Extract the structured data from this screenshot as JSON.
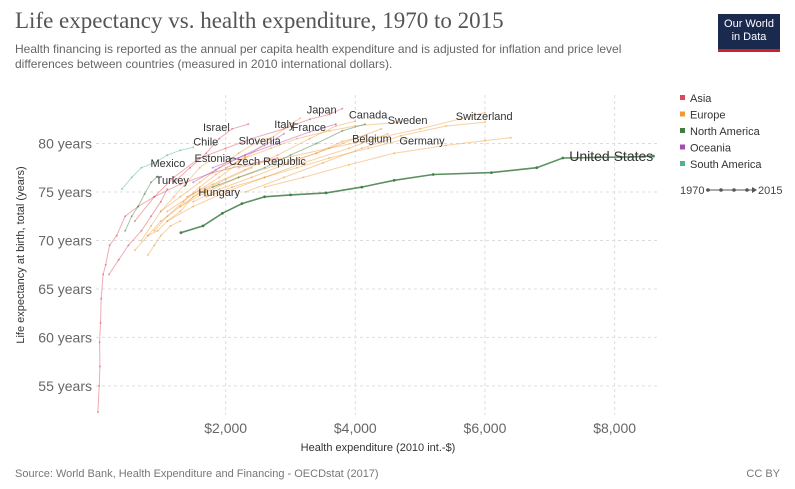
{
  "header": {
    "title": "Life expectancy vs. health expenditure, 1970 to 2015",
    "subtitle": "Health financing is reported as the annual per capita health expenditure and is adjusted for inflation and price level differences between countries (measured in 2010 international dollars).",
    "logo_line1": "Our World",
    "logo_line2": "in Data"
  },
  "footer": {
    "source": "Source: World Bank, Health Expenditure and Financing - OECDstat (2017)",
    "license": "CC BY"
  },
  "legend": {
    "items": [
      {
        "label": "Asia",
        "color": "#d94a5b"
      },
      {
        "label": "Europe",
        "color": "#ef9a37"
      },
      {
        "label": "North America",
        "color": "#3f7d45"
      },
      {
        "label": "Oceania",
        "color": "#a84ab5"
      },
      {
        "label": "South America",
        "color": "#4fb58c"
      }
    ],
    "time_start": "1970",
    "time_end": "2015"
  },
  "chart_data": {
    "type": "scatter",
    "mode": "connected",
    "xlabel": "Health expenditure (2010 int.-$)",
    "ylabel": "Life expectancy at birth, total (years)",
    "xlim": [
      0,
      8700
    ],
    "ylim": [
      52,
      85
    ],
    "x_ticks": [
      2000,
      4000,
      6000,
      8000
    ],
    "x_tick_labels": [
      "$2,000",
      "$4,000",
      "$6,000",
      "$8,000"
    ],
    "y_ticks": [
      55,
      60,
      65,
      70,
      75,
      80
    ],
    "y_tick_labels": [
      "55 years",
      "60 years",
      "65 years",
      "70 years",
      "75 years",
      "80 years"
    ],
    "grid": true,
    "series": [
      {
        "name": "United States",
        "region": "North America",
        "color": "#3f7d45",
        "highlight": true,
        "points": [
          [
            1310,
            70.8
          ],
          [
            1650,
            71.5
          ],
          [
            1950,
            72.8
          ],
          [
            2250,
            73.8
          ],
          [
            2600,
            74.5
          ],
          [
            3000,
            74.7
          ],
          [
            3550,
            74.9
          ],
          [
            4100,
            75.5
          ],
          [
            4600,
            76.2
          ],
          [
            5200,
            76.8
          ],
          [
            6100,
            77.0
          ],
          [
            6800,
            77.5
          ],
          [
            7200,
            78.5
          ],
          [
            8100,
            78.6
          ],
          [
            8600,
            78.7
          ]
        ]
      },
      {
        "name": "",
        "region": "Asia",
        "color": "#d94a5b",
        "highlight": false,
        "points": [
          [
            30,
            52.3
          ],
          [
            50,
            55.0
          ],
          [
            60,
            57.0
          ],
          [
            55,
            59.5
          ],
          [
            70,
            61.5
          ],
          [
            80,
            64.0
          ],
          [
            110,
            66.5
          ],
          [
            150,
            67.5
          ],
          [
            210,
            69.5
          ],
          [
            320,
            70.5
          ],
          [
            450,
            72.5
          ],
          [
            650,
            73.5
          ],
          [
            900,
            74.5
          ],
          [
            1300,
            75.8
          ],
          [
            1800,
            77.0
          ],
          [
            2300,
            77.8
          ],
          [
            2800,
            78.5
          ]
        ]
      },
      {
        "name": "Japan",
        "region": "Asia",
        "color": "#d94a5b",
        "highlight": false,
        "points": [
          [
            600,
            72.0
          ],
          [
            900,
            74.5
          ],
          [
            1200,
            76.5
          ],
          [
            1600,
            78.5
          ],
          [
            2000,
            79.5
          ],
          [
            2400,
            80.5
          ],
          [
            2900,
            81.5
          ],
          [
            3300,
            82.5
          ],
          [
            3600,
            83.0
          ],
          [
            3800,
            83.6
          ]
        ]
      },
      {
        "name": "Israel",
        "region": "Asia",
        "color": "#d94a5b",
        "highlight": false,
        "points": [
          [
            1200,
            76.0
          ],
          [
            1450,
            77.5
          ],
          [
            1700,
            79.0
          ],
          [
            1900,
            80.5
          ],
          [
            2100,
            81.5
          ],
          [
            2350,
            82.0
          ]
        ]
      },
      {
        "name": "Turkey",
        "region": "Asia",
        "color": "#d94a5b",
        "highlight": false,
        "points": [
          [
            200,
            66.5
          ],
          [
            350,
            68.0
          ],
          [
            500,
            69.5
          ],
          [
            700,
            71.0
          ],
          [
            850,
            72.5
          ],
          [
            1000,
            74.0
          ],
          [
            1100,
            75.3
          ]
        ]
      },
      {
        "name": "Switzerland",
        "region": "Europe",
        "color": "#ef9a37",
        "highlight": false,
        "points": [
          [
            2200,
            77.5
          ],
          [
            2900,
            78.5
          ],
          [
            3600,
            79.5
          ],
          [
            4300,
            80.5
          ],
          [
            5000,
            81.5
          ],
          [
            5600,
            82.5
          ],
          [
            6000,
            83.2
          ]
        ]
      },
      {
        "name": "Sweden",
        "region": "Europe",
        "color": "#ef9a37",
        "highlight": false,
        "points": [
          [
            2000,
            77.5
          ],
          [
            2300,
            78.5
          ],
          [
            2700,
            79.5
          ],
          [
            3100,
            80.5
          ],
          [
            3600,
            81.3
          ],
          [
            4000,
            81.8
          ],
          [
            4700,
            82.2
          ]
        ]
      },
      {
        "name": "Germany",
        "region": "Europe",
        "color": "#ef9a37",
        "highlight": false,
        "points": [
          [
            1700,
            74.5
          ],
          [
            2100,
            75.5
          ],
          [
            2600,
            76.5
          ],
          [
            3100,
            77.5
          ],
          [
            3600,
            78.5
          ],
          [
            4200,
            79.5
          ],
          [
            4800,
            80.5
          ]
        ]
      },
      {
        "name": "Belgium",
        "region": "Europe",
        "color": "#ef9a37",
        "highlight": false,
        "points": [
          [
            1500,
            74.0
          ],
          [
            1900,
            75.3
          ],
          [
            2400,
            76.5
          ],
          [
            2900,
            77.8
          ],
          [
            3400,
            79.0
          ],
          [
            3800,
            80.2
          ],
          [
            4150,
            80.8
          ]
        ]
      },
      {
        "name": "France",
        "region": "Europe",
        "color": "#ef9a37",
        "highlight": false,
        "points": [
          [
            1400,
            74.5
          ],
          [
            1800,
            75.8
          ],
          [
            2300,
            77.3
          ],
          [
            2800,
            78.8
          ],
          [
            3300,
            80.5
          ],
          [
            3700,
            81.8
          ],
          [
            4000,
            82.3
          ]
        ]
      },
      {
        "name": "Italy",
        "region": "Europe",
        "color": "#ef9a37",
        "highlight": false,
        "points": [
          [
            1100,
            73.0
          ],
          [
            1500,
            74.8
          ],
          [
            1900,
            76.5
          ],
          [
            2300,
            78.5
          ],
          [
            2700,
            80.5
          ],
          [
            3000,
            82.0
          ],
          [
            3150,
            82.6
          ]
        ]
      },
      {
        "name": "Slovenia",
        "region": "Europe",
        "color": "#ef9a37",
        "highlight": false,
        "points": [
          [
            1000,
            73.0
          ],
          [
            1300,
            74.5
          ],
          [
            1600,
            76.0
          ],
          [
            1900,
            77.5
          ],
          [
            2200,
            79.0
          ],
          [
            2500,
            80.2
          ],
          [
            2700,
            80.6
          ]
        ]
      },
      {
        "name": "Czech Republic",
        "region": "Europe",
        "color": "#ef9a37",
        "highlight": false,
        "points": [
          [
            900,
            71.0
          ],
          [
            1100,
            72.5
          ],
          [
            1350,
            74.0
          ],
          [
            1600,
            75.5
          ],
          [
            1850,
            76.8
          ],
          [
            2100,
            77.8
          ],
          [
            2300,
            78.7
          ]
        ]
      },
      {
        "name": "Estonia",
        "region": "Europe",
        "color": "#ef9a37",
        "highlight": false,
        "points": [
          [
            700,
            70.0
          ],
          [
            850,
            71.5
          ],
          [
            1000,
            73.0
          ],
          [
            1200,
            74.5
          ],
          [
            1400,
            76.0
          ],
          [
            1600,
            77.5
          ],
          [
            1750,
            78.2
          ]
        ]
      },
      {
        "name": "Hungary",
        "region": "Europe",
        "color": "#ef9a37",
        "highlight": false,
        "points": [
          [
            800,
            70.5
          ],
          [
            950,
            71.0
          ],
          [
            1100,
            72.0
          ],
          [
            1300,
            73.0
          ],
          [
            1500,
            74.5
          ],
          [
            1700,
            75.2
          ],
          [
            1900,
            75.8
          ]
        ]
      },
      {
        "name": "",
        "region": "Europe",
        "color": "#ef9a37",
        "highlight": false,
        "points": [
          [
            2600,
            75.5
          ],
          [
            3200,
            76.5
          ],
          [
            3900,
            77.8
          ],
          [
            4600,
            79.0
          ],
          [
            5400,
            79.8
          ],
          [
            6000,
            80.3
          ],
          [
            6400,
            80.6
          ]
        ]
      },
      {
        "name": "",
        "region": "Europe",
        "color": "#ef9a37",
        "highlight": false,
        "points": [
          [
            2300,
            75.0
          ],
          [
            2900,
            76.5
          ],
          [
            3500,
            78.0
          ],
          [
            4100,
            79.5
          ],
          [
            4700,
            80.8
          ],
          [
            5400,
            81.8
          ],
          [
            6000,
            82.2
          ]
        ]
      },
      {
        "name": "",
        "region": "Europe",
        "color": "#ef9a37",
        "highlight": false,
        "points": [
          [
            600,
            69.0
          ],
          [
            800,
            70.5
          ],
          [
            1000,
            72.0
          ],
          [
            1300,
            73.5
          ],
          [
            1600,
            75.0
          ],
          [
            2000,
            76.3
          ],
          [
            2400,
            77.5
          ]
        ]
      },
      {
        "name": "",
        "region": "Europe",
        "color": "#ef9a37",
        "highlight": false,
        "points": [
          [
            800,
            68.5
          ],
          [
            900,
            69.5
          ],
          [
            1000,
            70.5
          ],
          [
            1150,
            71.5
          ],
          [
            1300,
            72.0
          ]
        ]
      },
      {
        "name": "",
        "region": "Europe",
        "color": "#ef9a37",
        "highlight": false,
        "points": [
          [
            1100,
            72.0
          ],
          [
            1500,
            73.5
          ],
          [
            2000,
            75.0
          ],
          [
            2600,
            76.5
          ],
          [
            3200,
            78.0
          ],
          [
            3900,
            79.5
          ],
          [
            4500,
            81.0
          ]
        ]
      },
      {
        "name": "",
        "region": "Europe",
        "color": "#ef9a37",
        "highlight": false,
        "points": [
          [
            1300,
            73.5
          ],
          [
            1700,
            75.0
          ],
          [
            2200,
            76.5
          ],
          [
            2800,
            77.8
          ],
          [
            3400,
            79.0
          ],
          [
            4000,
            80.5
          ],
          [
            4400,
            81.5
          ]
        ]
      },
      {
        "name": "Canada",
        "region": "North America",
        "color": "#3f7d45",
        "highlight": false,
        "points": [
          [
            1800,
            75.5
          ],
          [
            2200,
            76.5
          ],
          [
            2600,
            77.5
          ],
          [
            3000,
            78.8
          ],
          [
            3400,
            80.0
          ],
          [
            3800,
            81.3
          ],
          [
            4150,
            82.0
          ]
        ]
      },
      {
        "name": "Mexico",
        "region": "North America",
        "color": "#3f7d45",
        "highlight": false,
        "points": [
          [
            450,
            71.0
          ],
          [
            550,
            72.5
          ],
          [
            650,
            73.5
          ],
          [
            750,
            74.8
          ],
          [
            850,
            76.0
          ],
          [
            950,
            76.6
          ]
        ]
      },
      {
        "name": "",
        "region": "Oceania",
        "color": "#a84ab5",
        "highlight": false,
        "points": [
          [
            1800,
            77.5
          ],
          [
            2300,
            78.8
          ],
          [
            2800,
            80.0
          ],
          [
            3300,
            81.2
          ],
          [
            3700,
            82.0
          ]
        ]
      },
      {
        "name": "",
        "region": "Oceania",
        "color": "#a84ab5",
        "highlight": false,
        "points": [
          [
            1500,
            76.0
          ],
          [
            1850,
            77.3
          ],
          [
            2200,
            78.5
          ],
          [
            2600,
            79.8
          ],
          [
            2900,
            81.0
          ]
        ]
      },
      {
        "name": "Chile",
        "region": "South America",
        "color": "#4fb58c",
        "highlight": false,
        "points": [
          [
            400,
            75.3
          ],
          [
            550,
            76.5
          ],
          [
            700,
            77.5
          ],
          [
            900,
            78.0
          ],
          [
            1100,
            78.8
          ],
          [
            1300,
            79.3
          ],
          [
            1500,
            79.6
          ]
        ]
      }
    ],
    "annotations": [
      {
        "text": "United States",
        "x": 7300,
        "y": 78.2,
        "size": "large"
      },
      {
        "text": "Japan",
        "x": 3250,
        "y": 83.1
      },
      {
        "text": "Canada",
        "x": 3900,
        "y": 82.6
      },
      {
        "text": "Israel",
        "x": 1650,
        "y": 81.3
      },
      {
        "text": "Italy",
        "x": 2750,
        "y": 81.6
      },
      {
        "text": "France",
        "x": 3020,
        "y": 81.3
      },
      {
        "text": "Sweden",
        "x": 4500,
        "y": 82.0
      },
      {
        "text": "Switzerland",
        "x": 5550,
        "y": 82.4
      },
      {
        "text": "Chile",
        "x": 1500,
        "y": 79.8
      },
      {
        "text": "Slovenia",
        "x": 2200,
        "y": 79.9
      },
      {
        "text": "Belgium",
        "x": 3950,
        "y": 80.1
      },
      {
        "text": "Germany",
        "x": 4680,
        "y": 79.9
      },
      {
        "text": "Estonia",
        "x": 1520,
        "y": 78.1
      },
      {
        "text": "Czech Republic",
        "x": 2050,
        "y": 77.8
      },
      {
        "text": "Mexico",
        "x": 840,
        "y": 77.6
      },
      {
        "text": "Turkey",
        "x": 920,
        "y": 75.8
      },
      {
        "text": "Hungary",
        "x": 1580,
        "y": 74.6
      }
    ]
  }
}
